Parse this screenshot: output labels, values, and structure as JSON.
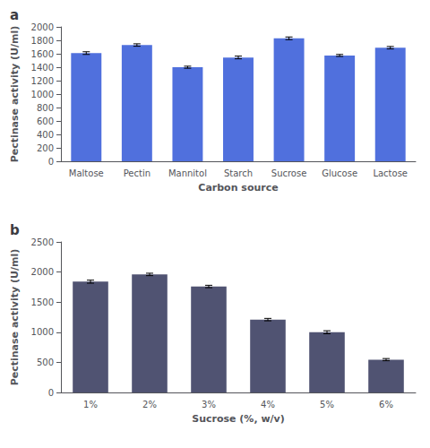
{
  "chart_data": [
    {
      "type": "bar",
      "annotations": [
        "a"
      ],
      "categories": [
        "Maltose",
        "Pectin",
        "Mannitol",
        "Starch",
        "Sucrose",
        "Glucose",
        "Lactose"
      ],
      "values": [
        1610,
        1730,
        1400,
        1545,
        1830,
        1575,
        1690
      ],
      "errors": [
        20,
        18,
        15,
        20,
        20,
        15,
        18
      ],
      "xlabel": "Carbon source",
      "ylabel": "Pectinase activity (U/ml)",
      "ylim": [
        0,
        2000
      ],
      "yticks": [
        0,
        200,
        400,
        600,
        800,
        1000,
        1200,
        1400,
        1600,
        1800,
        2000
      ],
      "grid": false
    },
    {
      "type": "bar",
      "annotations": [
        "b"
      ],
      "categories": [
        "1%",
        "2%",
        "3%",
        "4%",
        "5%",
        "6%"
      ],
      "values": [
        1840,
        1960,
        1760,
        1210,
        1000,
        545
      ],
      "errors": [
        25,
        20,
        20,
        20,
        25,
        18
      ],
      "xlabel": "Sucrose (%, w/v)",
      "ylabel": "Pectinase activity (U/ml)",
      "ylim": [
        0,
        2500
      ],
      "yticks": [
        0,
        500,
        1000,
        1500,
        2000,
        2500
      ],
      "grid": false
    }
  ]
}
